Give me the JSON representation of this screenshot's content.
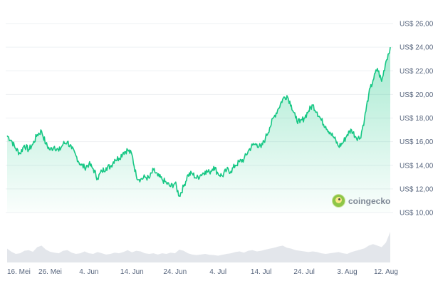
{
  "chart_data": {
    "type": "line",
    "currency_prefix": "US$",
    "y_ticks": [
      "US$ 26,00",
      "US$ 24,00",
      "US$ 22,00",
      "US$ 20,00",
      "US$ 18,00",
      "US$ 16,00",
      "US$ 14,00",
      "US$ 12,00",
      "US$ 10,00"
    ],
    "y_tick_values": [
      26,
      24,
      22,
      20,
      18,
      16,
      14,
      12,
      10
    ],
    "ylim": [
      10,
      26
    ],
    "x_ticks": [
      "16. Mei",
      "26. Mei",
      "4. Jun",
      "14. Jun",
      "24. Jun",
      "4. Jul",
      "14. Jul",
      "24. Jul",
      "3. Aug",
      "12. Aug"
    ],
    "x_tick_days": [
      0,
      10,
      19,
      29,
      39,
      49,
      59,
      69,
      79,
      88
    ],
    "xlim_days": [
      0,
      89
    ],
    "grid": true,
    "line_color": "#16c784",
    "series": [
      {
        "x": [
          0,
          1,
          2,
          3,
          4,
          5,
          6,
          7,
          8,
          9,
          10,
          11,
          12,
          13,
          14,
          15,
          16,
          17,
          18,
          19,
          20,
          21,
          22,
          23,
          24,
          25,
          26,
          27,
          28,
          29,
          30,
          31,
          32,
          33,
          34,
          35,
          36,
          37,
          38,
          39,
          40,
          41,
          42,
          43,
          44,
          45,
          46,
          47,
          48,
          49,
          50,
          51,
          52,
          53,
          54,
          55,
          56,
          57,
          58,
          59,
          60,
          61,
          62,
          63,
          64,
          65,
          66,
          67,
          68,
          69,
          70,
          71,
          72,
          73,
          74,
          75,
          76,
          77,
          78,
          79,
          80,
          81,
          82,
          83,
          84,
          85,
          86,
          87,
          88,
          89
        ],
        "values": [
          16.5,
          16.1,
          15.4,
          15.0,
          15.7,
          15.3,
          15.8,
          16.6,
          16.9,
          15.8,
          15.3,
          15.6,
          15.2,
          15.8,
          16.0,
          15.4,
          14.8,
          14.1,
          13.8,
          14.1,
          13.7,
          12.9,
          13.5,
          13.8,
          13.9,
          14.5,
          14.6,
          15.1,
          15.3,
          14.9,
          13.1,
          12.8,
          13.0,
          12.9,
          13.6,
          13.1,
          12.8,
          12.5,
          12.2,
          12.5,
          11.4,
          12.2,
          13.2,
          13.3,
          12.9,
          13.2,
          13.5,
          13.4,
          13.9,
          13.3,
          13.1,
          13.6,
          13.5,
          14.0,
          14.3,
          14.5,
          15.2,
          15.7,
          15.8,
          15.5,
          16.3,
          17.2,
          18.1,
          18.8,
          19.6,
          19.9,
          19.1,
          18.0,
          17.6,
          18.0,
          18.6,
          19.1,
          18.5,
          17.8,
          17.3,
          16.8,
          16.3,
          15.6,
          15.9,
          16.6,
          17.0,
          16.4,
          16.3,
          17.9,
          20.0,
          21.2,
          22.2,
          21.1,
          22.8,
          24.0
        ]
      }
    ],
    "volume": [
      0.45,
      0.35,
      0.28,
      0.3,
      0.38,
      0.4,
      0.35,
      0.5,
      0.55,
      0.42,
      0.35,
      0.32,
      0.3,
      0.38,
      0.4,
      0.32,
      0.28,
      0.3,
      0.36,
      0.3,
      0.28,
      0.34,
      0.3,
      0.26,
      0.28,
      0.32,
      0.3,
      0.34,
      0.4,
      0.33,
      0.38,
      0.36,
      0.3,
      0.28,
      0.3,
      0.26,
      0.3,
      0.28,
      0.32,
      0.3,
      0.42,
      0.38,
      0.3,
      0.26,
      0.24,
      0.26,
      0.28,
      0.25,
      0.24,
      0.22,
      0.25,
      0.28,
      0.3,
      0.34,
      0.36,
      0.32,
      0.38,
      0.4,
      0.36,
      0.38,
      0.42,
      0.45,
      0.48,
      0.52,
      0.55,
      0.48,
      0.45,
      0.4,
      0.38,
      0.36,
      0.34,
      0.36,
      0.34,
      0.3,
      0.28,
      0.3,
      0.32,
      0.34,
      0.3,
      0.28,
      0.34,
      0.38,
      0.42,
      0.46,
      0.55,
      0.6,
      0.55,
      0.5,
      0.65,
      1.0
    ]
  },
  "watermark": {
    "text": "coingecko",
    "logo_icon": "gecko-logo-icon"
  }
}
